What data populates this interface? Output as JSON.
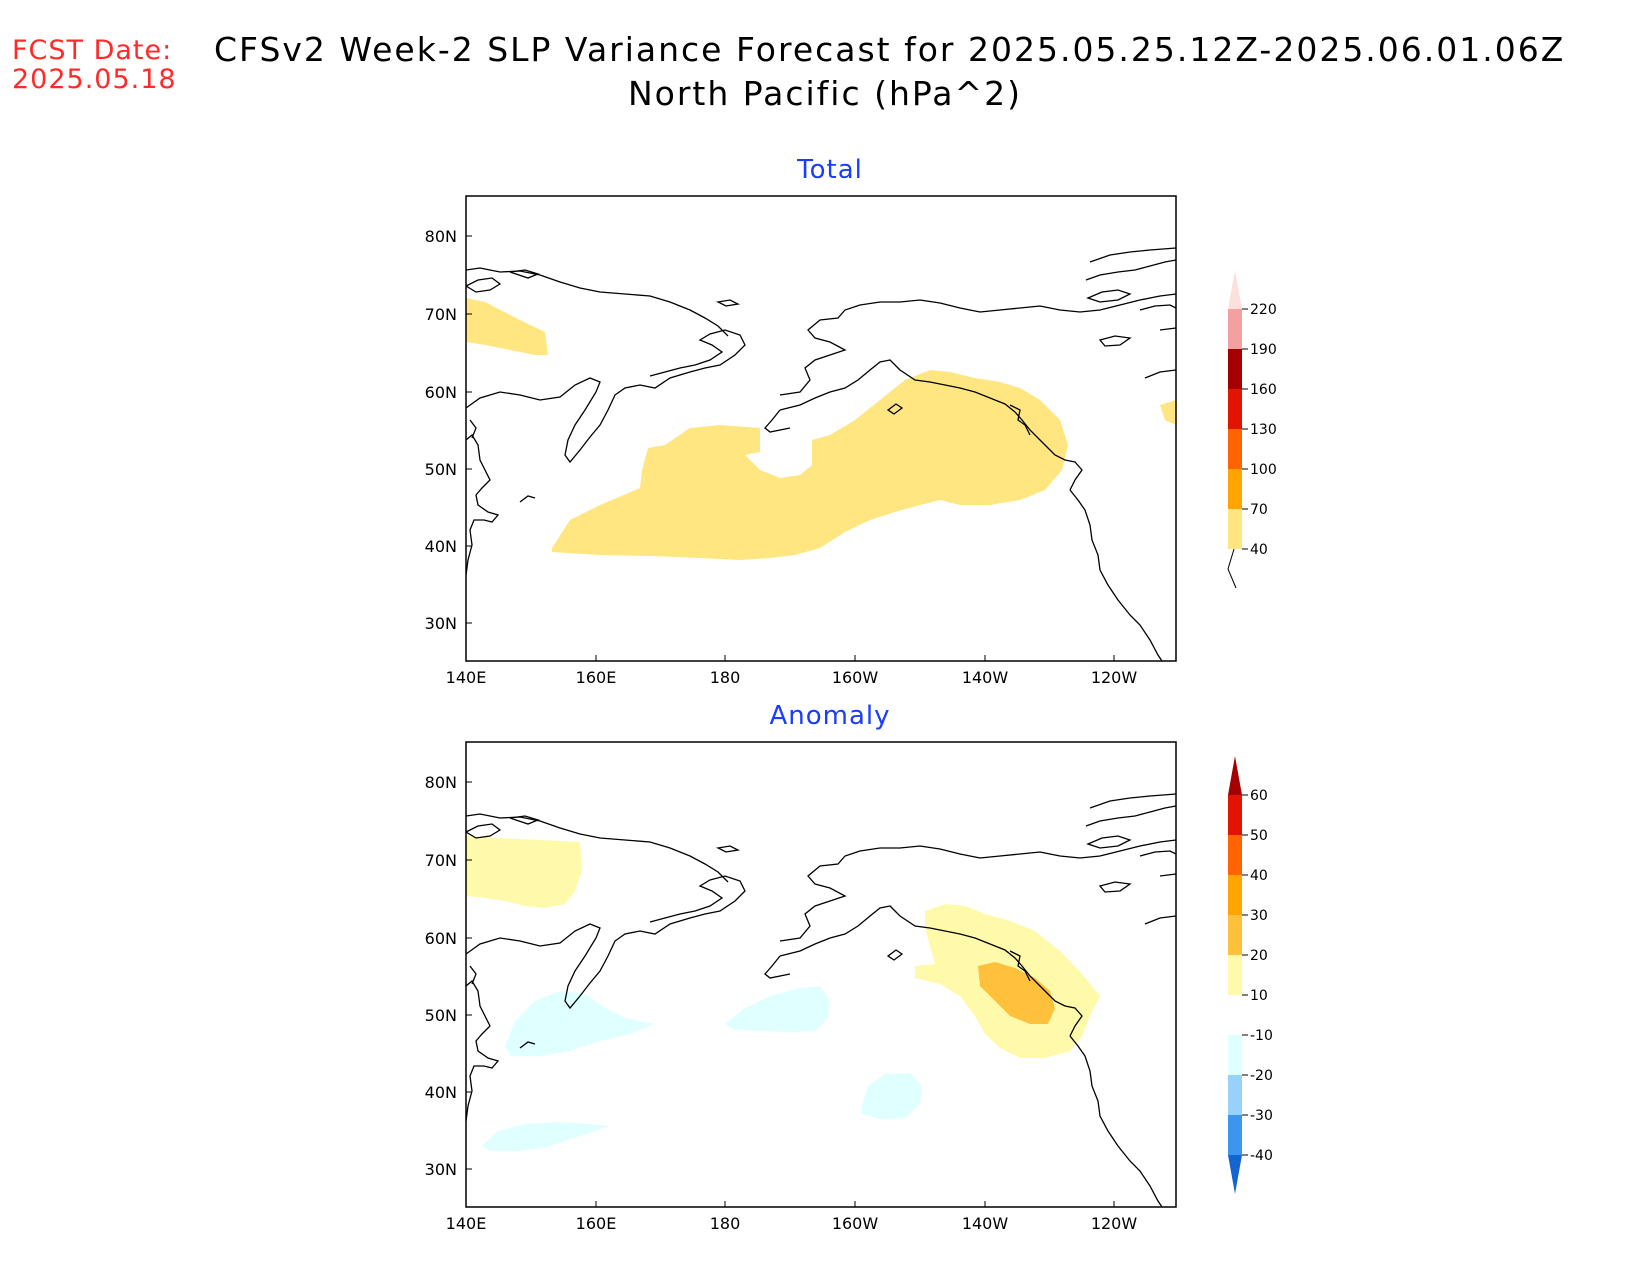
{
  "header": {
    "fcst_label": "FCST Date:",
    "fcst_date": "2025.05.18",
    "title_line1": "CFSv2 Week-2 SLP Variance Forecast for 2025.05.25.12Z-2025.06.01.06Z",
    "title_line2": "North Pacific (hPa^2)"
  },
  "map_axes": {
    "x_ticks": [
      "140E",
      "160E",
      "180",
      "160W",
      "140W",
      "120W"
    ],
    "y_ticks": [
      "80N",
      "70N",
      "60N",
      "50N",
      "40N",
      "30N"
    ],
    "lon_range": [
      "140E",
      "110W"
    ],
    "lat_range": [
      "25N",
      "85N"
    ]
  },
  "panels": {
    "total": {
      "title": "Total",
      "colorbar_levels": [
        "40",
        "70",
        "100",
        "130",
        "160",
        "190",
        "220"
      ],
      "colorbar_colors": [
        "#ffe680",
        "#ffa400",
        "#ff6400",
        "#e11400",
        "#a50000",
        "#f4a0a0",
        "#fde0dc"
      ]
    },
    "anomaly": {
      "title": "Anomaly",
      "colorbar_levels": [
        "60",
        "50",
        "40",
        "30",
        "20",
        "10",
        "-10",
        "-20",
        "-30",
        "-40"
      ],
      "colorbar_colors": [
        "#a50000",
        "#e11400",
        "#ff6400",
        "#ffa400",
        "#ffc03c",
        "#fffaaa",
        "#ffffff",
        "#e0ffff",
        "#96d2fa",
        "#3c96f0",
        "#1464d2"
      ]
    }
  },
  "colors": {
    "fcst_text": "#ff2a2a",
    "panel_title": "#1a3cff",
    "total_shade_40_70": "#ffe680",
    "anom_shade_10_20": "#fffaaa",
    "anom_shade_20_30": "#ffc03c",
    "anom_shade_neg10_neg20": "#e0ffff"
  }
}
